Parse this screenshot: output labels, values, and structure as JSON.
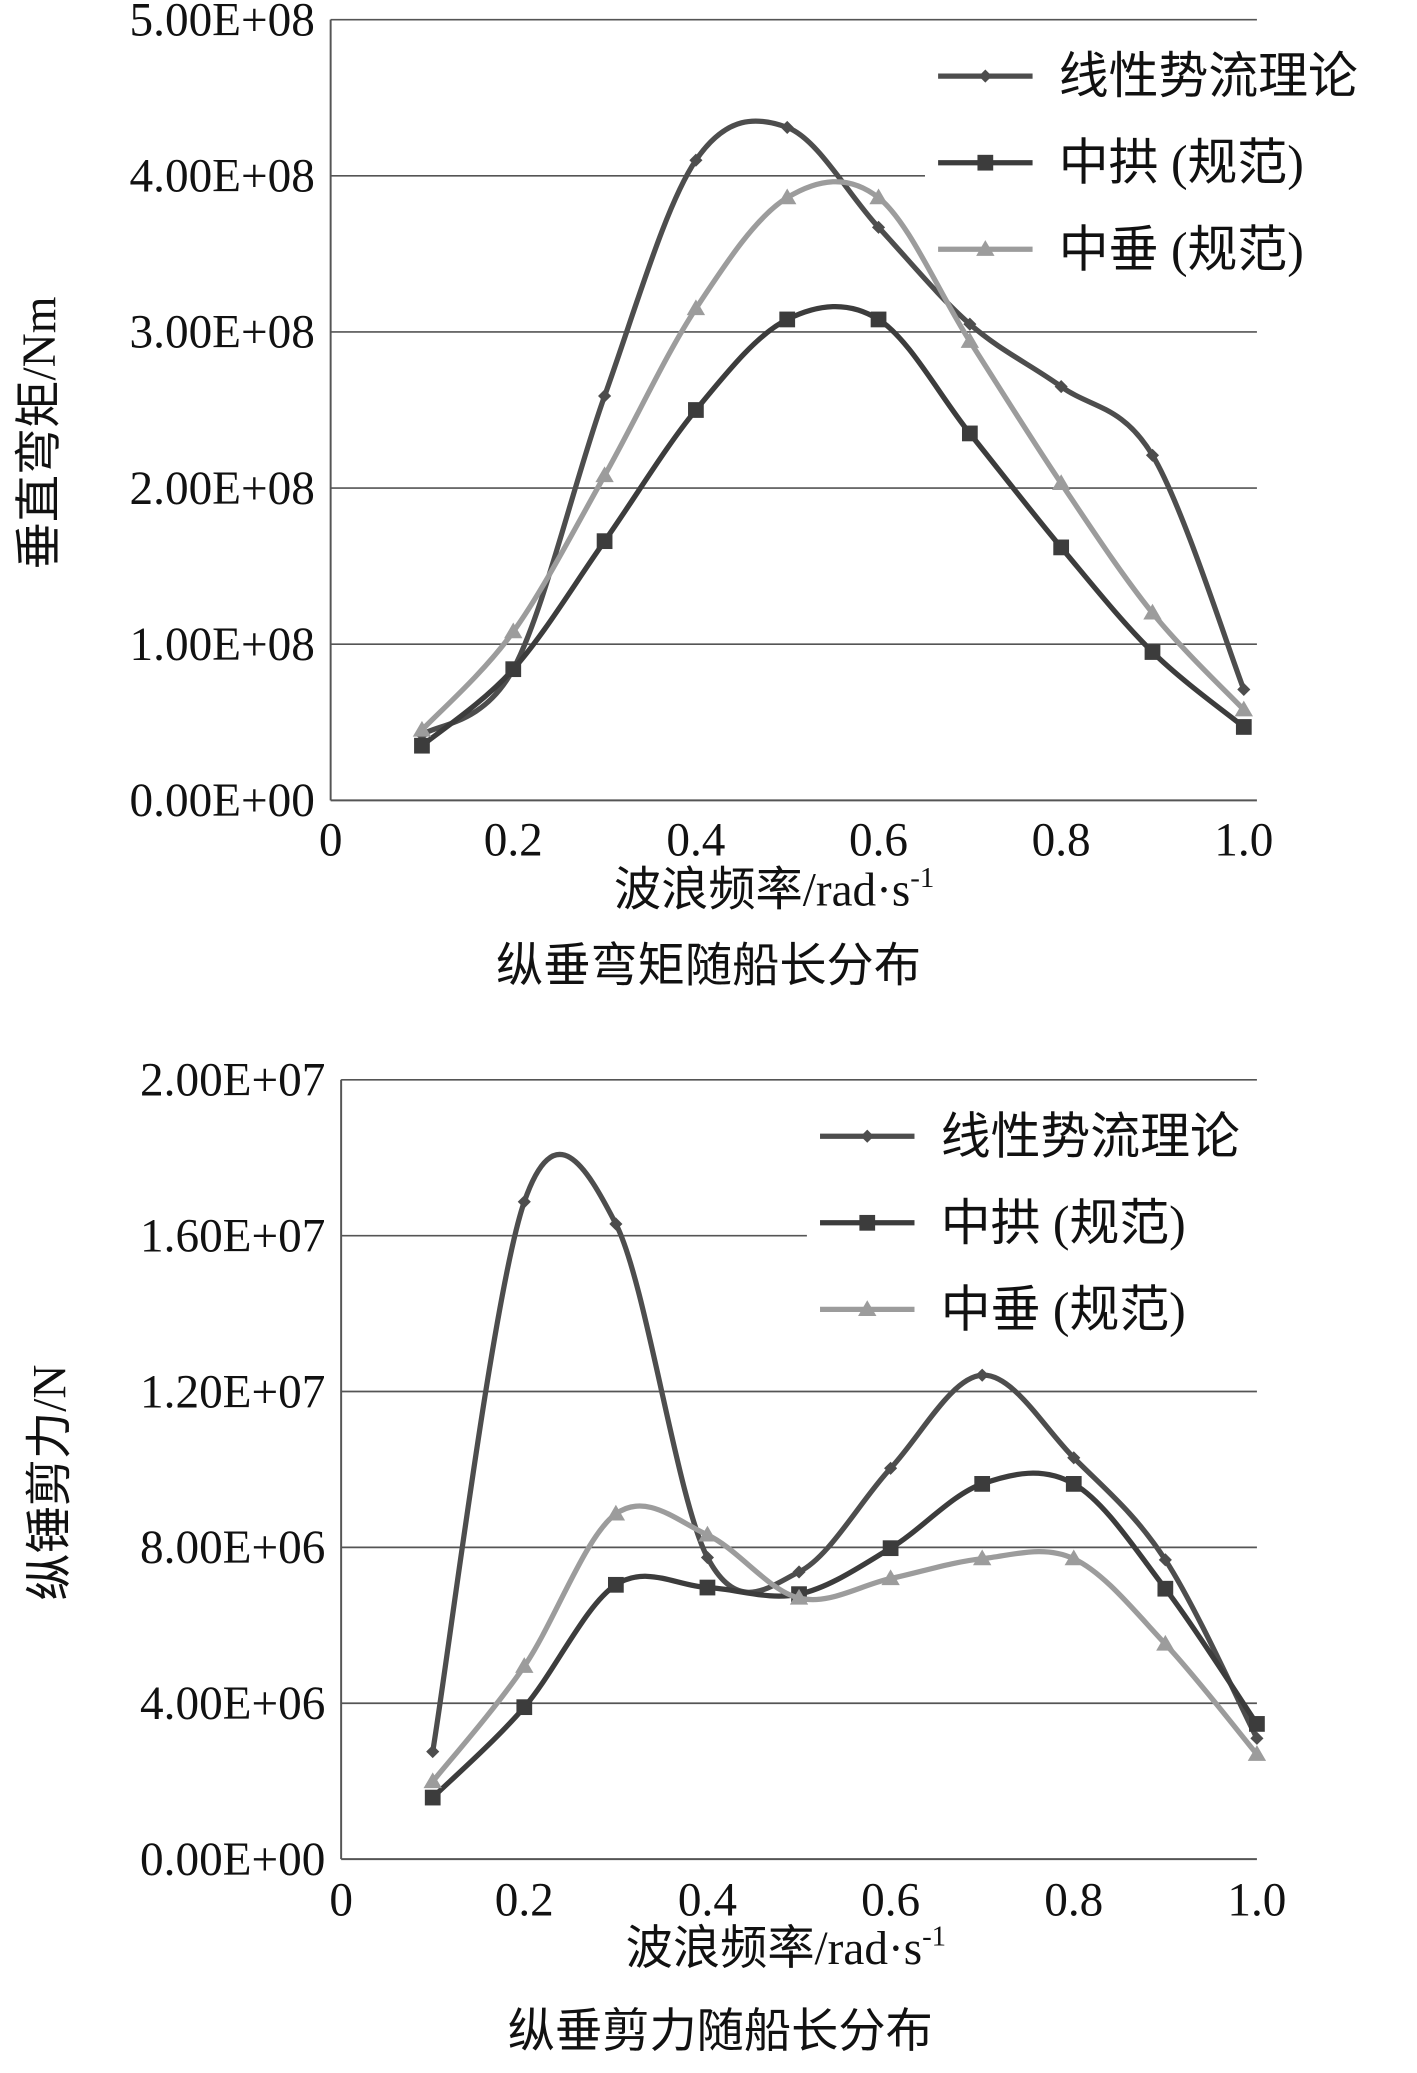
{
  "chart_data": [
    {
      "type": "line",
      "title": "纵垂弯矩随船长分布",
      "xlabel": "波浪频率/rad·s",
      "xlabel_sup": "-1",
      "ylabel": "垂直弯矩/Nm",
      "xlim": [
        0,
        1.0
      ],
      "ylim": [
        0,
        500000000
      ],
      "x_ticks": [
        "0",
        "0.2",
        "0.4",
        "0.6",
        "0.8",
        "1.0"
      ],
      "y_ticks": [
        "0.00E+00",
        "1.00E+08",
        "2.00E+08",
        "3.00E+08",
        "4.00E+08",
        "5.00E+08"
      ],
      "grid": true,
      "legend": "top-right",
      "x": [
        0.1,
        0.2,
        0.3,
        0.4,
        0.5,
        0.6,
        0.7,
        0.8,
        0.9,
        1.0
      ],
      "series": [
        {
          "name": "线性势流理论",
          "color": "#4d4d4d",
          "marker": "diamond",
          "values": [
            42000000,
            84000000,
            259000000,
            410000000,
            431000000,
            367000000,
            305000000,
            265000000,
            221000000,
            71000000
          ]
        },
        {
          "name": "中拱 (规范)",
          "color": "#3c3c3c",
          "marker": "square",
          "values": [
            35000000,
            84000000,
            166000000,
            250000000,
            308000000,
            308000000,
            235000000,
            162000000,
            95000000,
            47000000
          ]
        },
        {
          "name": "中垂 (规范)",
          "color": "#9c9c9c",
          "marker": "triangle",
          "values": [
            45000000,
            108000000,
            208000000,
            315000000,
            386000000,
            386000000,
            294000000,
            203000000,
            120000000,
            58000000
          ]
        }
      ]
    },
    {
      "type": "line",
      "title": "纵垂剪力随船长分布",
      "xlabel": "波浪频率/rad·s",
      "xlabel_sup": "-1",
      "ylabel": "纵锤剪力/N",
      "xlim": [
        0,
        1.0
      ],
      "ylim": [
        0,
        20000000
      ],
      "x_ticks": [
        "0",
        "0.2",
        "0.4",
        "0.6",
        "0.8",
        "1.0"
      ],
      "y_ticks": [
        "0.00E+00",
        "4.00E+06",
        "8.00E+06",
        "1.20E+07",
        "1.60E+07",
        "2.00E+07"
      ],
      "grid": true,
      "legend": "top-right",
      "x": [
        0.1,
        0.2,
        0.3,
        0.4,
        0.5,
        0.6,
        0.7,
        0.8,
        0.9,
        1.0
      ],
      "series": [
        {
          "name": "线性势流理论",
          "color": "#4d4d4d",
          "marker": "diamond",
          "values": [
            2760000,
            16870000,
            16300000,
            7740000,
            7370000,
            10030000,
            12420000,
            10300000,
            7680000,
            3100000
          ]
        },
        {
          "name": "中拱 (规范)",
          "color": "#3c3c3c",
          "marker": "square",
          "values": [
            1580000,
            3900000,
            7040000,
            6970000,
            6800000,
            7980000,
            9630000,
            9630000,
            6940000,
            3470000
          ]
        },
        {
          "name": "中垂 (规范)",
          "color": "#9c9c9c",
          "marker": "triangle",
          "values": [
            1990000,
            4950000,
            8860000,
            8320000,
            6700000,
            7200000,
            7710000,
            7710000,
            5520000,
            2690000
          ]
        }
      ]
    }
  ]
}
